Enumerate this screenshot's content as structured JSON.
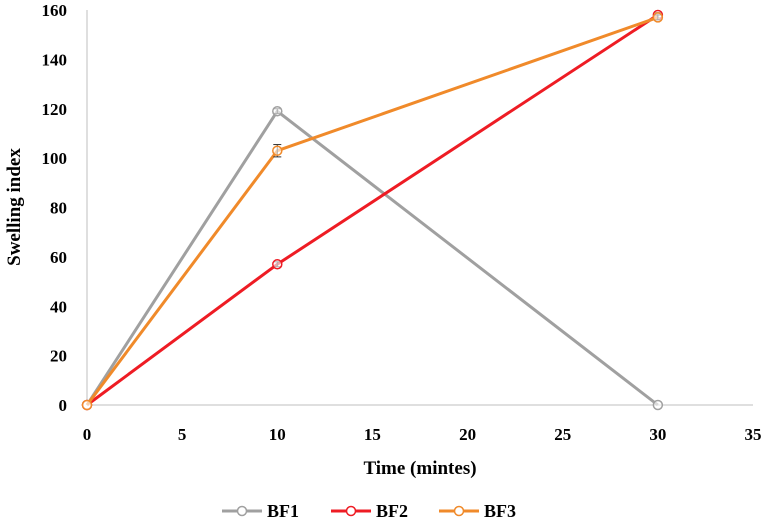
{
  "chart_data": {
    "type": "line",
    "title": "",
    "xlabel": "Time (mintes)",
    "ylabel": "Swelling index",
    "xlim": [
      0,
      35
    ],
    "ylim": [
      0,
      160
    ],
    "x_ticks": [
      "0",
      "5",
      "10",
      "15",
      "20",
      "25",
      "30",
      "35"
    ],
    "y_ticks": [
      "0",
      "20",
      "40",
      "60",
      "80",
      "100",
      "120",
      "140",
      "160"
    ],
    "grid": false,
    "legend_position": "bottom",
    "series": [
      {
        "name": "BF1",
        "color": "#a0a0a0",
        "x": [
          0,
          10,
          30
        ],
        "y": [
          0,
          119,
          0
        ],
        "error": [
          0,
          1,
          0
        ]
      },
      {
        "name": "BF2",
        "color": "#ee1c24",
        "x": [
          0,
          10,
          30
        ],
        "y": [
          0,
          57,
          158
        ],
        "error": [
          0,
          1,
          1
        ]
      },
      {
        "name": "BF3",
        "color": "#f08a2a",
        "x": [
          0,
          10,
          30
        ],
        "y": [
          0,
          103,
          157
        ],
        "error": [
          0,
          2.5,
          1
        ]
      }
    ]
  }
}
